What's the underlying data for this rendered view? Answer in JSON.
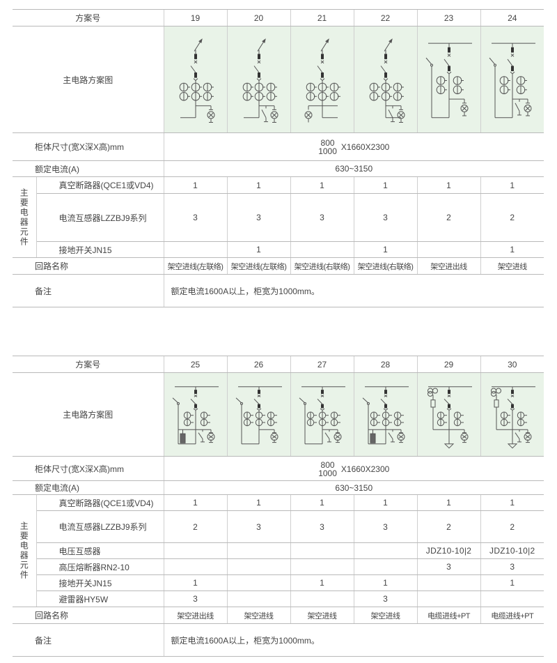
{
  "tables": [
    {
      "headers": {
        "scheme_no": "方案号",
        "diagram": "主电路方案图",
        "size": "柜体尺寸(宽X深X高)mm",
        "current": "额定电流(A)",
        "group": "主要电器元件",
        "circuit": "回路名称",
        "note": "备注"
      },
      "schemes": [
        "19",
        "20",
        "21",
        "22",
        "23",
        "24"
      ],
      "size_value": {
        "w1": "800",
        "w2": "1000",
        "rest": "X1660X2300"
      },
      "current_value": "630~3150",
      "components": [
        {
          "label": "真空断路器(QCE1或VD4)",
          "values": [
            "1",
            "1",
            "1",
            "1",
            "1",
            "1"
          ]
        },
        {
          "label": "电流互感器LZZBJ9系列",
          "values": [
            "3",
            "3",
            "3",
            "3",
            "2",
            "2"
          ]
        },
        {
          "label": "接地开关JN15",
          "values": [
            "",
            "1",
            "",
            "1",
            "",
            "1"
          ]
        }
      ],
      "circuits": [
        "架空进线(左联络)",
        "架空进线(左联络)",
        "架空进线(右联络)",
        "架空进线(右联络)",
        "架空进出线",
        "架空进线"
      ],
      "note_value": "额定电流1600A以上，柜宽为1000mm。"
    },
    {
      "headers": {
        "scheme_no": "方案号",
        "diagram": "主电路方案图",
        "size": "柜体尺寸(宽X深X高)mm",
        "current": "额定电流(A)",
        "group": "主要电器元件",
        "circuit": "回路名称",
        "note": "备注"
      },
      "schemes": [
        "25",
        "26",
        "27",
        "28",
        "29",
        "30"
      ],
      "size_value": {
        "w1": "800",
        "w2": "1000",
        "rest": "X1660X2300"
      },
      "current_value": "630~3150",
      "components": [
        {
          "label": "真空断路器(QCE1或VD4)",
          "values": [
            "1",
            "1",
            "1",
            "1",
            "1",
            "1"
          ]
        },
        {
          "label": "电流互感器LZZBJ9系列",
          "values": [
            "2",
            "3",
            "3",
            "3",
            "2",
            "2"
          ]
        },
        {
          "label": "电压互感器",
          "values": [
            "",
            "",
            "",
            "",
            "JDZ10-10|2",
            "JDZ10-10|2"
          ]
        },
        {
          "label": "高压熔断器RN2-10",
          "values": [
            "",
            "",
            "",
            "",
            "3",
            "3"
          ]
        },
        {
          "label": "接地开关JN15",
          "values": [
            "1",
            "",
            "1",
            "1",
            "",
            "1"
          ]
        },
        {
          "label": "避雷器HY5W",
          "values": [
            "3",
            "",
            "",
            "3",
            "",
            ""
          ]
        }
      ],
      "circuits": [
        "架空进出线",
        "架空进线",
        "架空进线",
        "架空进线",
        "电缆进线+PT",
        "电缆进线+PT"
      ],
      "note_value": "额定电流1600A以上，柜宽为1000mm。"
    }
  ],
  "colors": {
    "diagram_bg": "#e9f3e8",
    "line": "#555555"
  }
}
